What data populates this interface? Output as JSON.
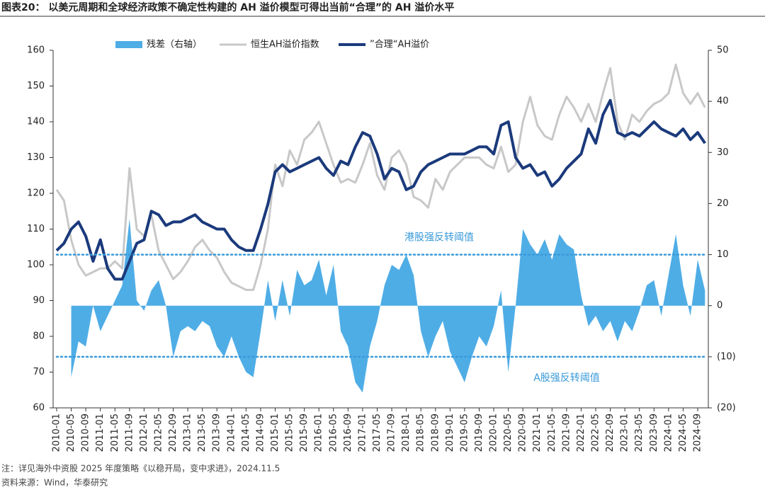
{
  "chart_data": {
    "type": "line",
    "title": "图表20：  以美元周期和全球经济政策不确定性构建的 AH 溢价模型可得出当前“合理”的 AH 溢价水平",
    "categories": [
      "2010-01",
      null,
      "2010-05",
      null,
      "2010-09",
      null,
      "2011-01",
      null,
      "2011-05",
      null,
      "2011-09",
      null,
      "2012-01",
      null,
      "2012-05",
      null,
      "2012-09",
      null,
      "2013-01",
      null,
      "2013-05",
      null,
      "2013-09",
      null,
      "2014-01",
      null,
      "2014-05",
      null,
      "2014-09",
      null,
      "2015-01",
      null,
      "2015-05",
      null,
      "2015-09",
      null,
      "2016-01",
      null,
      "2016-05",
      null,
      "2016-09",
      null,
      "2017-01",
      null,
      "2017-05",
      null,
      "2017-09",
      null,
      "2018-01",
      null,
      "2018-05",
      null,
      "2018-09",
      null,
      "2019-01",
      null,
      "2019-05",
      null,
      "2019-09",
      null,
      "2020-01",
      null,
      "2020-05",
      null,
      "2020-09",
      null,
      "2021-01",
      null,
      "2021-05",
      null,
      "2021-09",
      null,
      "2022-01",
      null,
      "2022-05",
      null,
      "2022-09",
      null,
      "2023-01",
      null,
      "2023-05",
      null,
      "2023-09",
      null,
      "2024-01",
      null,
      "2024-05",
      null,
      "2024-09",
      null
    ],
    "series": [
      {
        "name": "残差（右轴）",
        "color": "#4fade6",
        "axis": "y2",
        "kind": "area",
        "values": [
          null,
          null,
          -14,
          -7,
          -8,
          0,
          -5,
          -2,
          1,
          4,
          17,
          1,
          -1,
          3,
          5,
          0,
          -10,
          -5,
          -4,
          -5,
          -3,
          -4,
          -8,
          -10,
          -6,
          -10,
          -13,
          -14,
          -5,
          5,
          -3,
          5,
          -2,
          7,
          4,
          5,
          9,
          2,
          8,
          -5,
          -8,
          -15,
          -17,
          -8,
          -3,
          4,
          8,
          7,
          10,
          6,
          -5,
          -10,
          -6,
          -3,
          -9,
          -12,
          -15,
          -10,
          -6,
          -8,
          -4,
          3,
          -13,
          0,
          15,
          12,
          10,
          13,
          9,
          14,
          12,
          11,
          2,
          -4,
          -2,
          -5,
          -3,
          -7,
          -3,
          -5,
          -1,
          4,
          5,
          -2,
          6,
          14,
          4,
          -2,
          9,
          3
        ]
      },
      {
        "name": "恒生AH溢价指数",
        "color": "#c8c8c8",
        "kind": "line",
        "width": 3,
        "values": [
          121,
          118,
          107,
          100,
          97,
          98,
          99,
          99,
          101,
          99,
          127,
          110,
          108,
          114,
          104,
          100,
          96,
          98,
          101,
          105,
          107,
          104,
          102,
          98,
          95,
          94,
          93,
          93,
          100,
          110,
          128,
          122,
          132,
          128,
          135,
          137,
          140,
          134,
          128,
          123,
          124,
          123,
          128,
          134,
          125,
          121,
          130,
          132,
          128,
          119,
          118,
          116,
          124,
          121,
          126,
          128,
          130,
          130,
          130,
          128,
          127,
          133,
          126,
          128,
          140,
          147,
          139,
          136,
          135,
          142,
          147,
          144,
          140,
          145,
          140,
          148,
          155,
          140,
          135,
          142,
          140,
          143,
          145,
          146,
          148,
          156,
          148,
          145,
          148,
          144
        ]
      },
      {
        "name": "”合理“AH溢价",
        "color": "#1b3a7c",
        "kind": "line",
        "width": 4,
        "values": [
          104,
          106,
          110,
          112,
          108,
          101,
          107,
          99,
          96,
          96,
          101,
          106,
          107,
          115,
          114,
          111,
          112,
          112,
          113,
          114,
          112,
          111,
          110,
          110,
          107,
          105,
          104,
          104,
          110,
          117,
          126,
          128,
          126,
          127,
          128,
          129,
          130,
          127,
          125,
          129,
          128,
          133,
          137,
          136,
          131,
          124,
          127,
          126,
          121,
          122,
          126,
          128,
          129,
          130,
          131,
          131,
          131,
          132,
          133,
          133,
          131,
          139,
          140,
          130,
          127,
          128,
          125,
          126,
          122,
          124,
          127,
          129,
          131,
          138,
          134,
          142,
          146,
          137,
          136,
          137,
          136,
          138,
          140,
          138,
          137,
          136,
          138,
          135,
          137,
          134
        ]
      }
    ],
    "ylim": [
      60,
      160
    ],
    "yticks": [
      60,
      70,
      80,
      90,
      100,
      110,
      120,
      130,
      140,
      150,
      160
    ],
    "y2lim": [
      -20,
      50
    ],
    "y2ticks": [
      {
        "value": -20,
        "label": "(20)"
      },
      {
        "value": -10,
        "label": "(10)"
      },
      0,
      10,
      20,
      30,
      40,
      50
    ],
    "annotations": [
      {
        "text": "港股强反转阈值",
        "value": 10
      },
      {
        "text": "A股强反转阈值",
        "value": -10
      }
    ],
    "notes": [
      "注：详见海外中资股 2025 年度策略《以稳开局，变中求进》，2024.11.5",
      "资料来源：Wind，华泰研究"
    ]
  }
}
